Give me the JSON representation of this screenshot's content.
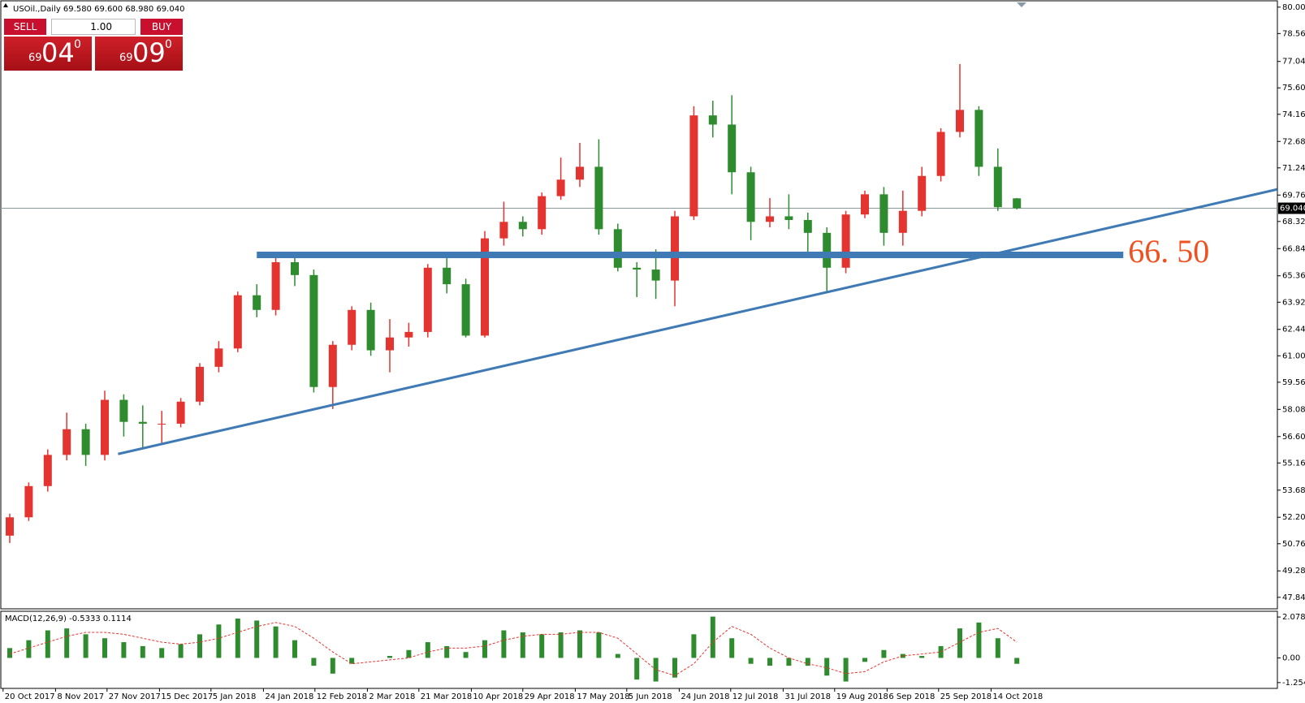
{
  "header": "USOil.,Daily  69.580 69.600 68.980 69.040",
  "trade_panel": {
    "sell": "SELL",
    "buy": "BUY",
    "lot": "1.00",
    "sell_price": {
      "prefix": "69",
      "big": "04",
      "sup": "0"
    },
    "buy_price": {
      "prefix": "69",
      "big": "09",
      "sup": "0"
    }
  },
  "chart_data": [
    {
      "type": "candlestick",
      "up_color": "#e3342f",
      "down_color": "#2e8b2e",
      "open": [
        51.2,
        52.2,
        53.9,
        55.6,
        57.0,
        55.6,
        58.6,
        57.4,
        57.3,
        57.3,
        58.5,
        60.4,
        61.4,
        64.3,
        63.5,
        66.1,
        65.4,
        59.3,
        61.6,
        63.5,
        61.3,
        62.0,
        62.3,
        65.8,
        64.9,
        62.1,
        67.4,
        68.3,
        67.9,
        69.7,
        70.6,
        71.3,
        67.9,
        65.8,
        65.7,
        65.1,
        68.6,
        74.1,
        73.6,
        71.0,
        68.3,
        68.6,
        68.4,
        67.7,
        65.8,
        68.7,
        69.8,
        67.7,
        68.9,
        70.8,
        73.2,
        74.4,
        71.3,
        69.58
      ],
      "high": [
        52.4,
        54.1,
        55.9,
        57.9,
        57.3,
        59.1,
        58.9,
        58.3,
        58.0,
        58.7,
        60.6,
        61.8,
        64.5,
        64.9,
        66.6,
        66.5,
        65.7,
        61.8,
        63.7,
        63.9,
        63.0,
        62.8,
        66.0,
        66.6,
        65.2,
        67.8,
        69.4,
        68.6,
        69.9,
        71.8,
        72.6,
        72.8,
        68.2,
        66.1,
        66.8,
        68.9,
        74.6,
        74.9,
        75.2,
        71.3,
        69.6,
        69.8,
        68.8,
        68.0,
        68.9,
        70.0,
        70.2,
        70.0,
        71.3,
        73.4,
        76.9,
        74.6,
        72.3,
        69.6
      ],
      "low": [
        50.8,
        52.0,
        53.6,
        55.3,
        55.0,
        55.3,
        56.6,
        56.0,
        56.2,
        57.1,
        58.3,
        60.1,
        61.2,
        63.1,
        63.2,
        64.8,
        59.0,
        58.1,
        61.3,
        61.0,
        60.1,
        61.5,
        62.0,
        64.4,
        62.0,
        62.0,
        67.0,
        67.5,
        67.6,
        69.5,
        70.2,
        67.6,
        65.6,
        64.2,
        64.1,
        63.7,
        68.4,
        72.9,
        69.8,
        67.3,
        68.0,
        67.9,
        66.5,
        64.4,
        65.5,
        68.5,
        67.0,
        67.0,
        68.6,
        70.5,
        72.9,
        70.8,
        68.9,
        68.98
      ],
      "close": [
        52.2,
        53.9,
        55.6,
        57.0,
        55.6,
        58.6,
        57.4,
        57.3,
        57.3,
        58.5,
        60.4,
        61.4,
        64.3,
        63.5,
        66.1,
        65.4,
        59.3,
        61.6,
        63.5,
        61.3,
        62.0,
        62.3,
        65.8,
        64.9,
        62.1,
        67.4,
        68.3,
        67.9,
        69.7,
        70.6,
        71.3,
        67.9,
        65.8,
        65.7,
        65.1,
        68.6,
        74.1,
        73.6,
        71.0,
        68.3,
        68.6,
        68.4,
        67.7,
        65.8,
        68.7,
        69.8,
        67.7,
        68.9,
        70.8,
        73.2,
        74.4,
        71.3,
        69.1,
        69.04
      ],
      "ylim": [
        47.3,
        80.3
      ],
      "yticks": [
        {
          "value": 47.84,
          "label": "47.840"
        },
        {
          "value": 49.28,
          "label": "49.280"
        },
        {
          "value": 50.76,
          "label": "50.760"
        },
        {
          "value": 52.2,
          "label": "52.200"
        },
        {
          "value": 53.68,
          "label": "53.680"
        },
        {
          "value": 55.16,
          "label": "55.160"
        },
        {
          "value": 56.6,
          "label": "56.600"
        },
        {
          "value": 58.08,
          "label": "58.080"
        },
        {
          "value": 59.56,
          "label": "59.560"
        },
        {
          "value": 61,
          "label": "61.000"
        },
        {
          "value": 62.44,
          "label": "62.440"
        },
        {
          "value": 63.92,
          "label": "63.920"
        },
        {
          "value": 65.36,
          "label": "65.360"
        },
        {
          "value": 66.84,
          "label": "66.840"
        },
        {
          "value": 68.32,
          "label": "68.320"
        },
        {
          "value": 69.76,
          "label": "69.760"
        },
        {
          "value": 71.24,
          "label": "71.240"
        },
        {
          "value": 72.68,
          "label": "72.680"
        },
        {
          "value": 74.16,
          "label": "74.160"
        },
        {
          "value": 75.6,
          "label": "75.600"
        },
        {
          "value": 77.04,
          "label": "77.040"
        },
        {
          "value": 78.56,
          "label": "78.560"
        },
        {
          "value": 80,
          "label": "80.000"
        }
      ],
      "current_price": {
        "value": 69.04,
        "label": "69.040"
      },
      "level": {
        "value": 66.5,
        "label": "66. 50",
        "x": [
          13.0,
          58.6
        ],
        "color": "#3f7ab5",
        "label_color": "#f0501e"
      },
      "trendline": {
        "x": [
          5.7,
          66.7
        ],
        "y": [
          55.65,
          70.07
        ],
        "color": "#3f7ab5"
      }
    },
    {
      "type": "macd",
      "title": "MACD(12,26,9) -0.5333 0.1114",
      "histogram": {
        "color": "#2e8b2e",
        "values": [
          0.5,
          0.9,
          1.4,
          1.5,
          1.2,
          1.0,
          0.8,
          0.6,
          0.5,
          0.7,
          1.2,
          1.7,
          2.0,
          1.9,
          1.6,
          0.9,
          -0.4,
          -0.8,
          -0.3,
          0.0,
          0.1,
          0.4,
          0.8,
          0.6,
          0.3,
          0.9,
          1.4,
          1.3,
          1.2,
          1.3,
          1.4,
          1.3,
          0.2,
          -1.1,
          -1.2,
          -1.0,
          1.2,
          2.1,
          1.0,
          -0.3,
          -0.4,
          -0.4,
          -0.4,
          -0.9,
          -1.2,
          -0.2,
          0.4,
          0.2,
          0.1,
          0.6,
          1.5,
          1.8,
          1.0,
          -0.3
        ]
      },
      "signal": {
        "color": "#e3342f",
        "values": [
          0.2,
          0.5,
          0.8,
          1.1,
          1.3,
          1.3,
          1.2,
          1.0,
          0.8,
          0.7,
          0.8,
          1.0,
          1.3,
          1.6,
          1.8,
          1.6,
          1.0,
          0.3,
          -0.3,
          -0.2,
          -0.1,
          0.0,
          0.3,
          0.5,
          0.5,
          0.6,
          0.9,
          1.1,
          1.2,
          1.2,
          1.3,
          1.3,
          1.0,
          0.2,
          -0.6,
          -0.9,
          -0.3,
          0.8,
          1.6,
          1.2,
          0.5,
          0.0,
          -0.3,
          -0.5,
          -0.8,
          -0.7,
          -0.2,
          0.1,
          0.2,
          0.3,
          0.8,
          1.3,
          1.5,
          0.8
        ]
      },
      "ylim": [
        -1.55,
        2.33
      ],
      "yticks": [
        2.0789,
        {
          "value": 0,
          "label": "0.00"
        },
        -1.2542
      ],
      "xticks": [
        {
          "value": -0.35,
          "label": "20 Oct 2017"
        },
        {
          "value": 2.41,
          "label": "8 Nov 2017"
        },
        {
          "value": 5.12,
          "label": "27 Nov 2017"
        },
        {
          "value": 7.88,
          "label": "15 Dec 2017"
        },
        {
          "value": 10.59,
          "label": "5 Jan 2018"
        },
        {
          "value": 13.35,
          "label": "24 Jan 2018"
        },
        {
          "value": 16.06,
          "label": "12 Feb 2018"
        },
        {
          "value": 18.82,
          "label": "2 Mar 2018"
        },
        {
          "value": 21.53,
          "label": "21 Mar 2018"
        },
        {
          "value": 24.29,
          "label": "10 Apr 2018"
        },
        {
          "value": 27.0,
          "label": "29 Apr 2018"
        },
        {
          "value": 29.76,
          "label": "17 May 2018"
        },
        {
          "value": 32.47,
          "label": "5 Jun 2018"
        },
        {
          "value": 35.23,
          "label": "24 Jun 2018"
        },
        {
          "value": 37.94,
          "label": "12 Jul 2018"
        },
        {
          "value": 40.7,
          "label": "31 Jul 2018"
        },
        {
          "value": 43.41,
          "label": "19 Aug 2018"
        },
        {
          "value": 46.17,
          "label": "6 Sep 2018"
        },
        {
          "value": 48.88,
          "label": "25 Sep 2018"
        },
        {
          "value": 51.64,
          "label": "14 Oct 2018"
        }
      ]
    }
  ]
}
